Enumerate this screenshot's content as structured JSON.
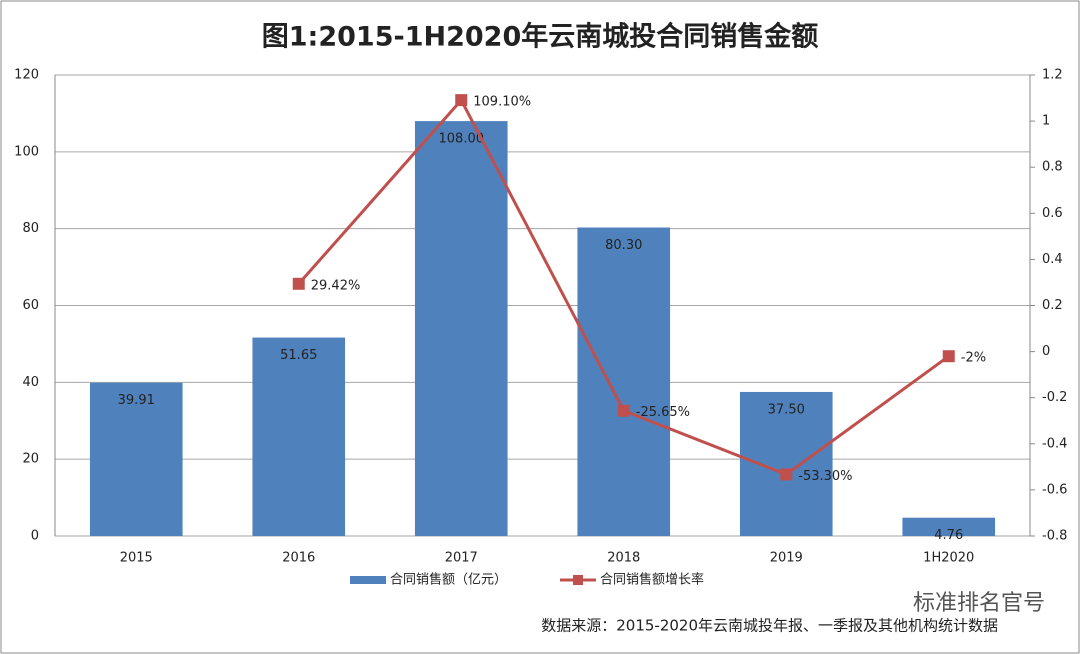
{
  "chart_data": {
    "type": "bar_line",
    "title": "图1:2015-1H2020年云南城投合同销售金额",
    "categories": [
      "2015",
      "2016",
      "2017",
      "2018",
      "2019",
      "1H2020"
    ],
    "series": [
      {
        "name": "合同销售额（亿元）",
        "type": "bar",
        "color": "#4f81bd",
        "values": [
          39.91,
          51.65,
          108,
          80.3,
          37.5,
          4.76
        ],
        "value_labels": [
          "39.91",
          "51.65",
          "108.00",
          "80.30",
          "37.50",
          "4.76"
        ]
      },
      {
        "name": "合同销售额增长率",
        "type": "line",
        "axis": "y2",
        "color": "#c0504d",
        "values": [
          null,
          0.2942,
          1.091,
          -0.2565,
          -0.533,
          -0.02
        ],
        "value_labels": [
          null,
          "29.42%",
          "109.10%",
          "-25.65%",
          "-53.30%",
          "-2%"
        ]
      }
    ],
    "ylim": [
      0,
      120
    ],
    "yticks": [
      0,
      20,
      40,
      60,
      80,
      100,
      120
    ],
    "y2lim": [
      -0.8,
      1.2
    ],
    "y2ticks": [
      -0.8,
      -0.6,
      -0.4,
      -0.2,
      0,
      0.2,
      0.4,
      0.6,
      0.8,
      1,
      1.2
    ],
    "grid": true,
    "legend": "bottom",
    "source": "数据来源：2015-2020年云南城投年报、一季报及其他机构统计数据",
    "brand": "标准排名官号"
  }
}
